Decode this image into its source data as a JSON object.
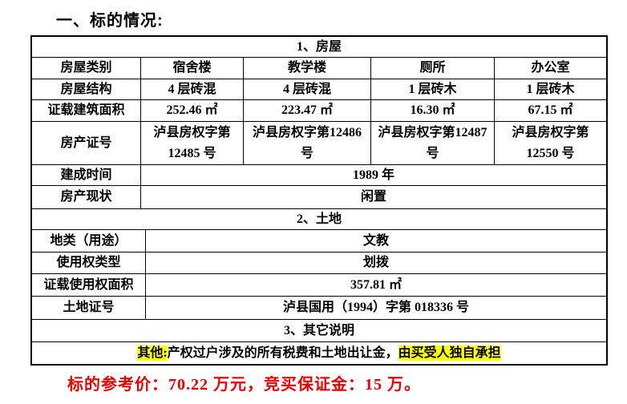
{
  "page": {
    "title": "一、标的情况:",
    "footer": "标的参考价：70.22 万元，竞买保证金：15 万。"
  },
  "colors": {
    "highlight": "#ffff00",
    "footer_red": "#ee0000",
    "border": "#000000"
  },
  "house": {
    "section_header": "1、房屋",
    "grid_rows": [
      {
        "label": "房屋类别",
        "cells": [
          "宿舍楼",
          "教学楼",
          "厕所",
          "办公室"
        ]
      },
      {
        "label": "房屋结构",
        "cells": [
          "4 层砖混",
          "4 层砖混",
          "1 层砖木",
          "1 层砖木"
        ]
      },
      {
        "label": "证载建筑面积",
        "cells": [
          "252.46 ㎡",
          "223.47 ㎡",
          "16.30 ㎡",
          "67.15 ㎡"
        ]
      },
      {
        "label": "房产证号",
        "cells": [
          "泸县房权字第12485 号",
          "泸县房权字第12486 号",
          "泸县房权字第12487 号",
          "泸县房权字第12550 号"
        ]
      }
    ],
    "span_rows": [
      {
        "label": "建成时间",
        "value": "1989 年"
      },
      {
        "label": "房产现状",
        "value": "闲置"
      }
    ]
  },
  "land": {
    "section_header": "2、土地",
    "span_rows": [
      {
        "label": "地类（用途）",
        "value": "文教"
      },
      {
        "label": "使用权类型",
        "value": "划拨"
      },
      {
        "label": "证载使用权面积",
        "value": "357.81 ㎡"
      },
      {
        "label": "土地证号",
        "value": "泸县国用（1994）字第 018336 号"
      }
    ]
  },
  "other": {
    "section_header": "3、其它说明",
    "note_head": "其他:",
    "note_mid": "产权过户涉及的所有税费和土地出让金，",
    "note_tail": "由买受人独自承担"
  }
}
